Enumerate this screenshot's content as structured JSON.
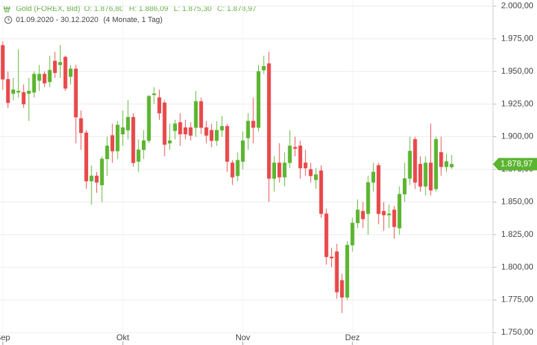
{
  "chart_data": {
    "type": "candlestick",
    "title": "Gold (FOREX, Bid)",
    "ohlc_labels": [
      "O: 1.876,80",
      "H: 1.886,09",
      "L: 1.875,30",
      "C: 1.878,97"
    ],
    "period": "01.09.2020 - 30.12.2020",
    "interval": "(4 Monate, 1 Tag)",
    "up_color": "#5cb531",
    "down_color": "#e8494b",
    "categories": [
      "Sep",
      null,
      null,
      null,
      null,
      null,
      null,
      null,
      null,
      null,
      null,
      null,
      null,
      null,
      null,
      null,
      null,
      null,
      null,
      null,
      null,
      null,
      null,
      "Okt",
      null,
      null,
      null,
      null,
      null,
      null,
      null,
      null,
      null,
      null,
      null,
      null,
      null,
      null,
      null,
      null,
      null,
      null,
      null,
      null,
      null,
      null,
      "Nov",
      null,
      null,
      null,
      null,
      null,
      null,
      null,
      null,
      null,
      null,
      null,
      null,
      null,
      null,
      null,
      null,
      null,
      null,
      null,
      null,
      "Dez",
      null,
      null,
      null,
      null,
      null,
      null,
      null,
      null,
      null,
      null,
      null,
      null,
      null,
      null,
      null,
      null,
      null,
      null,
      null
    ],
    "open": [
      1970,
      1944,
      1933,
      1934,
      1934,
      1933,
      1934,
      1943,
      1948,
      1942,
      1958,
      1955,
      1961,
      1946,
      1952,
      1914,
      1903,
      1866,
      1870,
      1863,
      1883,
      1901,
      1889,
      1902,
      1905,
      1915,
      1881,
      1890,
      1897,
      1932,
      1930,
      1926,
      1895,
      1904.5,
      1911,
      1907,
      1907,
      1907,
      1927,
      1907,
      1905,
      1897,
      1905,
      1908,
      1880,
      1870,
      1881,
      1899,
      1912,
      1907,
      1951,
      1956,
      1868,
      1880,
      1869,
      1880,
      1892,
      1893,
      1880,
      1875,
      1867,
      1874,
      1841,
      1808,
      1812,
      1790,
      1777,
      1817,
      1834,
      1843,
      1841,
      1865,
      1878,
      1843,
      1840,
      1844,
      1830,
      1856,
      1868,
      1898,
      1879,
      1862,
      1880,
      1860,
      1888,
      1877,
      1876.8
    ],
    "high": [
      1973,
      1950,
      1945,
      1967,
      1940,
      1945,
      1950,
      1955,
      1950,
      1962,
      1965,
      1970,
      1962,
      1955,
      1955,
      1920,
      1905,
      1878,
      1873,
      1885,
      1900,
      1910,
      1912,
      1920,
      1928,
      1918,
      1898,
      1905,
      1932,
      1938,
      1936,
      1928,
      1910,
      1913,
      1918,
      1913,
      1911,
      1935,
      1930,
      1912,
      1910,
      1912,
      1916,
      1910,
      1882,
      1888,
      1904,
      1918,
      1930,
      1955,
      1962,
      1965,
      1885,
      1895,
      1888,
      1905,
      1900,
      1897,
      1890,
      1880,
      1876,
      1878,
      1845,
      1815,
      1818,
      1795,
      1820,
      1838,
      1852,
      1850,
      1870,
      1880,
      1880,
      1850,
      1848,
      1847,
      1862,
      1880,
      1900,
      1900,
      1885,
      1885,
      1910,
      1900,
      1900,
      1887,
      1886.09
    ],
    "low": [
      1936,
      1922,
      1928,
      1930,
      1922,
      1912,
      1930,
      1935,
      1938,
      1938,
      1945,
      1945,
      1935,
      1940,
      1895,
      1890,
      1860,
      1848,
      1857,
      1850,
      1870,
      1880,
      1883,
      1893,
      1898,
      1877,
      1873,
      1883,
      1895,
      1925,
      1913,
      1885,
      1890,
      1898,
      1893,
      1898,
      1897,
      1900,
      1902,
      1895,
      1892,
      1893,
      1900,
      1873,
      1863,
      1866,
      1875,
      1890,
      1895,
      1904,
      1948,
      1850,
      1858,
      1865,
      1862,
      1876,
      1885,
      1868,
      1870,
      1865,
      1860,
      1838,
      1802,
      1800,
      1776,
      1765,
      1775,
      1812,
      1830,
      1830,
      1825,
      1858,
      1833,
      1828,
      1830,
      1822,
      1825,
      1850,
      1863,
      1860,
      1858,
      1855,
      1855,
      1858,
      1870,
      1873,
      1875.3
    ],
    "close": [
      1944,
      1926,
      1936,
      1935,
      1925,
      1935,
      1948,
      1948,
      1941,
      1951,
      1949,
      1957,
      1937,
      1952,
      1915,
      1903,
      1866,
      1870,
      1865,
      1883,
      1893,
      1889,
      1909,
      1907,
      1915,
      1880,
      1890,
      1897,
      1931,
      1933,
      1918,
      1894,
      1897,
      1910,
      1902,
      1902,
      1901,
      1927,
      1907,
      1901,
      1897,
      1905,
      1908,
      1881,
      1869,
      1882,
      1897,
      1912,
      1907,
      1950,
      1954,
      1868,
      1880,
      1869,
      1880,
      1893,
      1891,
      1876,
      1876,
      1870,
      1871,
      1841,
      1808,
      1807,
      1781,
      1777,
      1817,
      1834,
      1844,
      1837,
      1865,
      1873,
      1841,
      1840,
      1841,
      1831,
      1856,
      1868,
      1889,
      1865,
      1862,
      1880,
      1859,
      1898,
      1877,
      1881,
      1878.97
    ],
    "current_price": {
      "value": 1878.97,
      "label": "1.878,97"
    },
    "ylim": [
      1740.5,
      2004.7
    ],
    "yticks": [
      {
        "value": 1750,
        "label": "1.750,00"
      },
      {
        "value": 1775,
        "label": "1.775,00"
      },
      {
        "value": 1800,
        "label": "1.800,00"
      },
      {
        "value": 1825,
        "label": "1.825,00"
      },
      {
        "value": 1850,
        "label": "1.850,00"
      },
      {
        "value": 1875,
        "label": "1.875,00"
      },
      {
        "value": 1900,
        "label": "1.900,00"
      },
      {
        "value": 1925,
        "label": "1.925,00"
      },
      {
        "value": 1950,
        "label": "1.950,00"
      },
      {
        "value": 1975,
        "label": "1.975,00"
      },
      {
        "value": 2000,
        "label": "2.000,00"
      }
    ],
    "grid": true
  }
}
